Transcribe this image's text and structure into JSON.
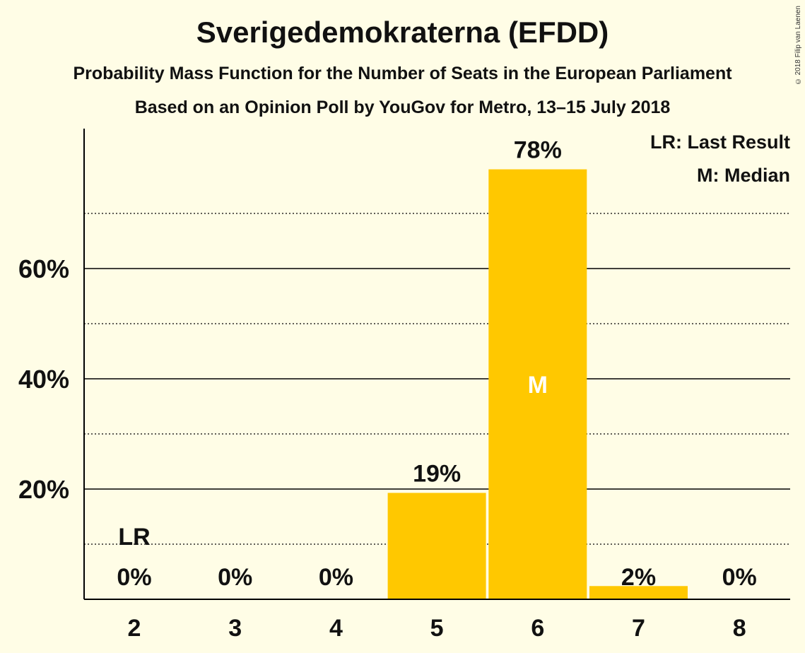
{
  "chart_data": {
    "type": "bar",
    "title": "Sverigedemokraterna (EFDD)",
    "subtitle": "Probability Mass Function for the Number of Seats in the European Parliament",
    "subtitle2": "Based on an Opinion Poll by YouGov for Metro, 13–15 July 2018",
    "categories": [
      "2",
      "3",
      "4",
      "5",
      "6",
      "7",
      "8"
    ],
    "values": [
      0,
      0,
      0,
      19.3,
      78.0,
      2.4,
      0
    ],
    "value_labels": [
      "0%",
      "0%",
      "0%",
      "19%",
      "78%",
      "2%",
      "0%"
    ],
    "ylim": [
      0,
      85
    ],
    "yticks": [
      20,
      40,
      60
    ],
    "ytick_labels": [
      "20%",
      "40%",
      "60%"
    ],
    "minor_gridlines": [
      10,
      30,
      50,
      70
    ],
    "last_result_index": 0,
    "last_result_label": "LR",
    "median_index": 4,
    "median_label": "M",
    "legend": [
      "LR: Last Result",
      "M: Median"
    ],
    "legend_position": "top-right",
    "bar_color": "#FFC800"
  },
  "copyright": "© 2018 Filip van Laenen"
}
